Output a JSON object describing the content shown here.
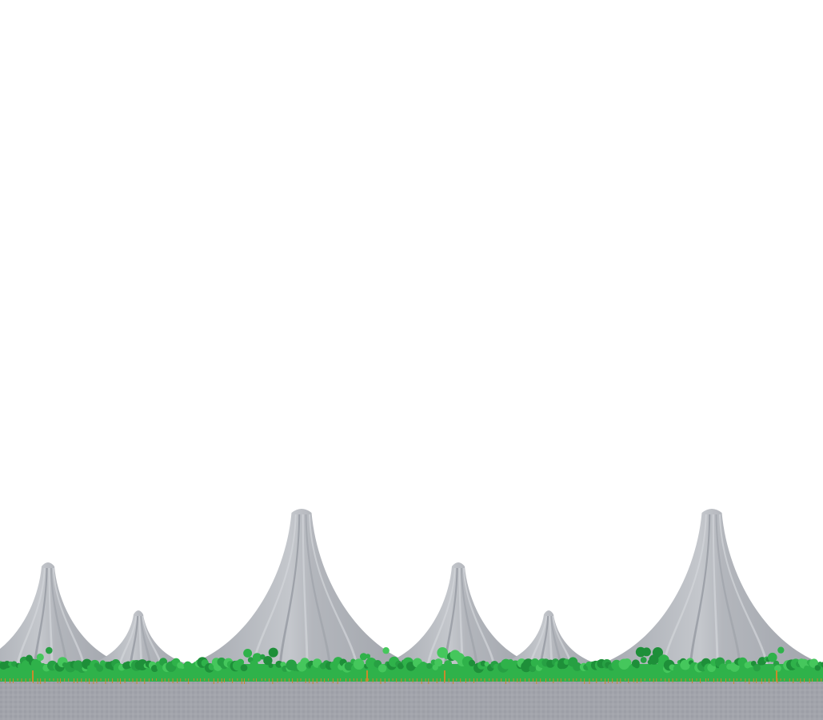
{
  "scene": {
    "sky_color": "#ffffff",
    "ground_color": "#a2a4ab",
    "ground_stripe_color": "#999ba3",
    "shrub_colors": [
      "#2fb24a",
      "#27a043",
      "#45c75c",
      "#1e8f39"
    ],
    "root_color": "#c98a2c",
    "mountain_colors": {
      "dark": "#9ea2a9",
      "mid": "#b8bbc1",
      "light": "#d3d5da",
      "shadow": "#8f939b"
    },
    "mountains": [
      {
        "kind": "medium",
        "peak": "medium"
      },
      {
        "kind": "small",
        "peak": "small"
      },
      {
        "kind": "large",
        "peak": "tall"
      },
      {
        "kind": "medium",
        "peak": "medium"
      },
      {
        "kind": "small",
        "peak": "small"
      },
      {
        "kind": "large",
        "peak": "tall"
      }
    ]
  }
}
